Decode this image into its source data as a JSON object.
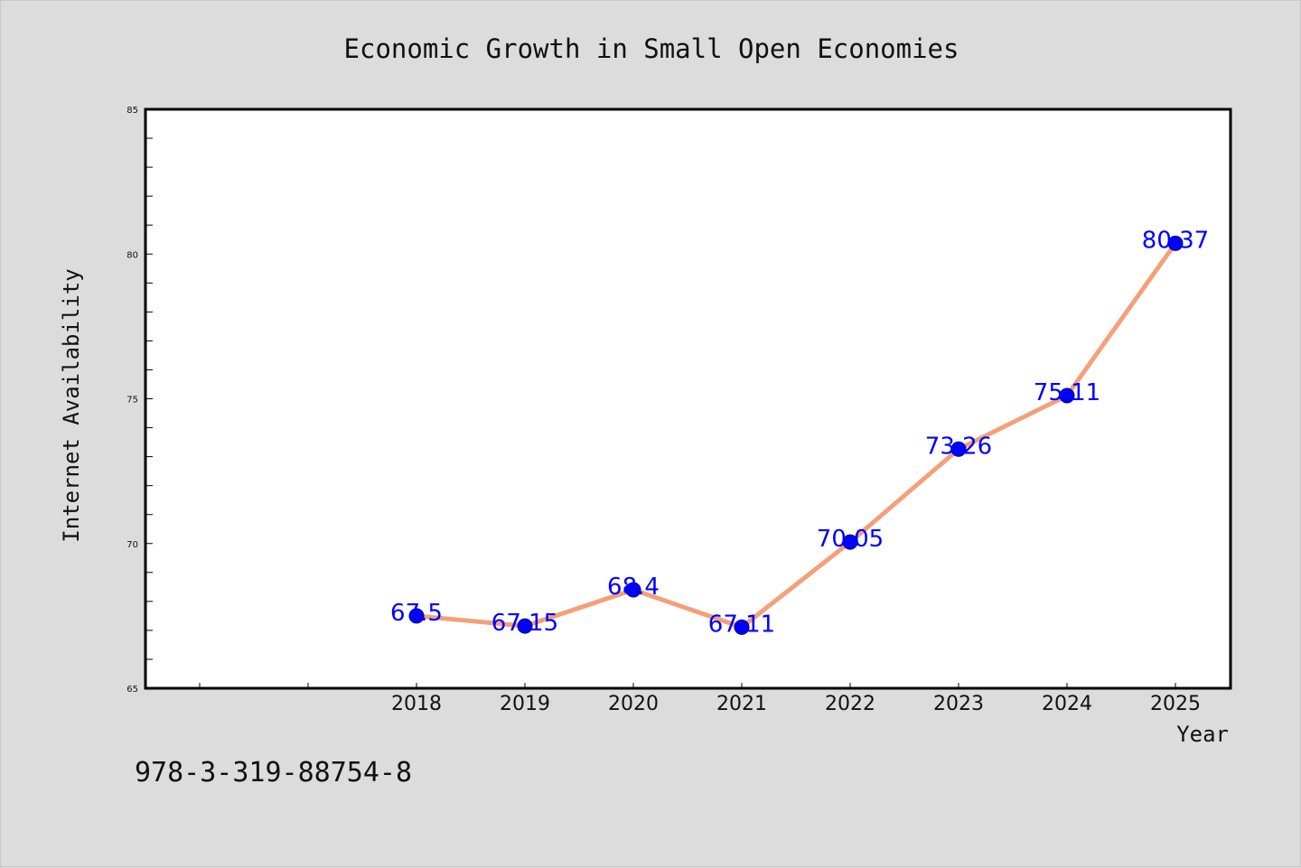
{
  "chart_data": {
    "type": "line",
    "title": "Economic Growth in Small Open Economies",
    "xlabel": "Year",
    "ylabel": "Internet Availability",
    "categories": [
      "2018",
      "2019",
      "2020",
      "2021",
      "2022",
      "2023",
      "2024",
      "2025"
    ],
    "series": [
      {
        "values": [
          67.5,
          67.15,
          68.4,
          67.11,
          70.05,
          73.26,
          75.11,
          80.37
        ],
        "data_labels": [
          "67.5",
          "67.15",
          "68.4",
          "67.11",
          "70.05",
          "73.26",
          "75.11",
          "80.37"
        ],
        "line_color": "#f4a07a",
        "marker_color": "#0000ff"
      }
    ],
    "ylim": [
      65,
      85
    ],
    "y_ticks": [
      "65",
      "70",
      "75",
      "80",
      "85"
    ],
    "grid": false,
    "legend": "none"
  },
  "footer_text": "978-3-319-88754-8",
  "colors": {
    "background": "#dcdcdc",
    "plot_background": "#ffffff",
    "data_label": "#0000ff"
  }
}
